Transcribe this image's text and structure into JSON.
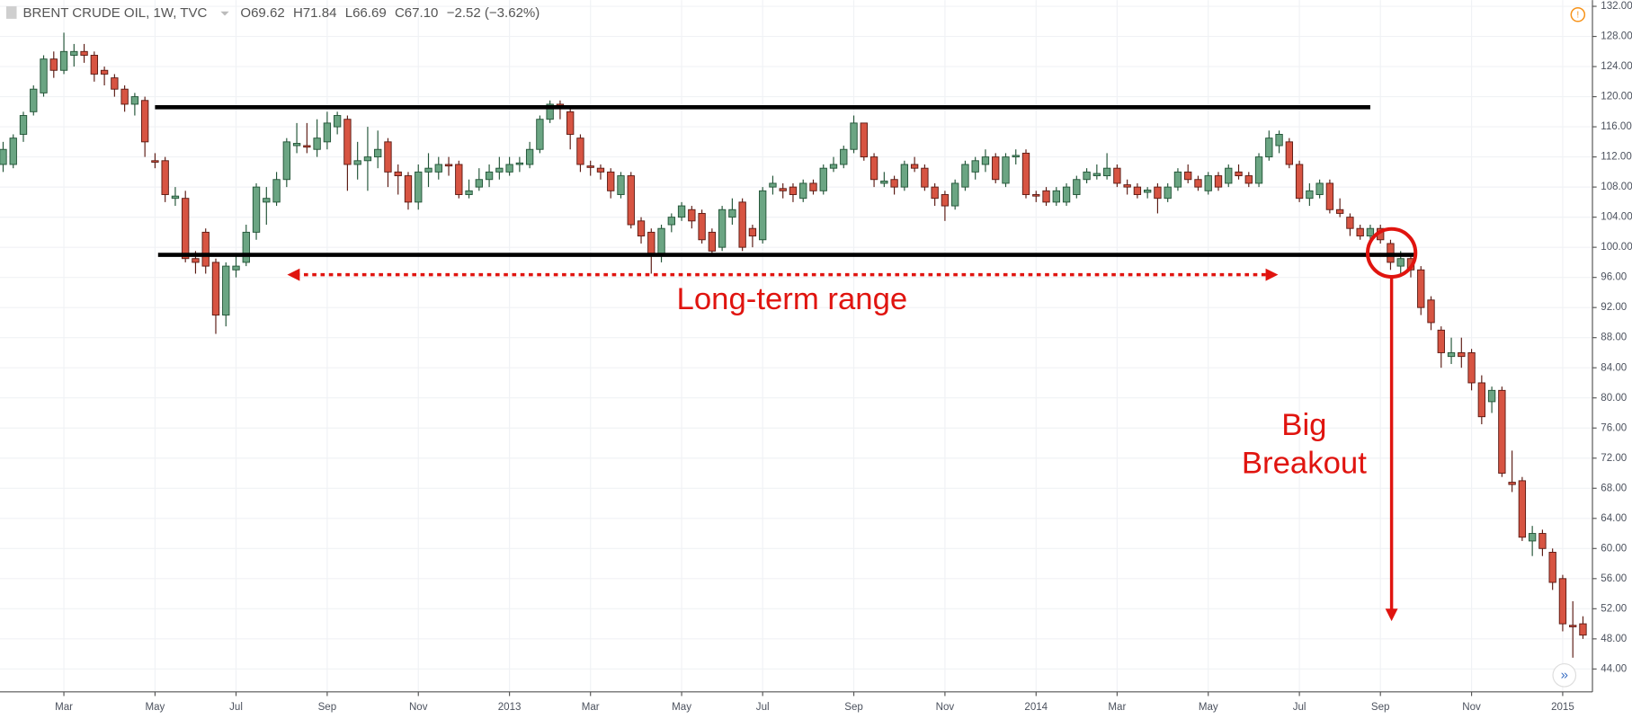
{
  "chart_data": {
    "type": "candlestick",
    "title": "BRENT CRUDE OIL, 1W, TVC",
    "legend_values": [
      "O69.62",
      "H71.84",
      "L66.69",
      "C67.10",
      "−2.52 (−3.62%)"
    ],
    "categories": [
      null,
      null,
      null,
      null,
      null,
      null,
      "Mar",
      null,
      null,
      null,
      null,
      null,
      null,
      null,
      null,
      "May",
      null,
      null,
      null,
      null,
      null,
      null,
      null,
      "Jul",
      null,
      null,
      null,
      null,
      null,
      null,
      null,
      null,
      "Sep",
      null,
      null,
      null,
      null,
      null,
      null,
      null,
      null,
      "Nov",
      null,
      null,
      null,
      null,
      null,
      null,
      null,
      null,
      "2013",
      null,
      null,
      null,
      null,
      null,
      null,
      null,
      "Mar",
      null,
      null,
      null,
      null,
      null,
      null,
      null,
      null,
      "May",
      null,
      null,
      null,
      null,
      null,
      null,
      null,
      "Jul",
      null,
      null,
      null,
      null,
      null,
      null,
      null,
      null,
      "Sep",
      null,
      null,
      null,
      null,
      null,
      null,
      null,
      null,
      "Nov",
      null,
      null,
      null,
      null,
      null,
      null,
      null,
      null,
      "2014",
      null,
      null,
      null,
      null,
      null,
      null,
      null,
      "Mar",
      null,
      null,
      null,
      null,
      null,
      null,
      null,
      null,
      "May",
      null,
      null,
      null,
      null,
      null,
      null,
      null,
      null,
      "Jul",
      null,
      null,
      null,
      null,
      null,
      null,
      null,
      "Sep",
      null,
      null,
      null,
      null,
      null,
      null,
      null,
      null,
      "Nov",
      null,
      null,
      null,
      null,
      null,
      null,
      null,
      null,
      "2015",
      null,
      null
    ],
    "open": [
      111,
      111,
      115,
      118,
      120.5,
      125,
      123.5,
      125.5,
      126,
      125.5,
      123.5,
      122.5,
      121,
      119,
      119.5,
      111.5,
      111.5,
      106.5,
      106.5,
      98.5,
      102,
      98,
      91,
      97,
      98,
      102,
      106,
      106,
      109,
      113.5,
      113.5,
      113,
      114,
      116,
      117,
      111,
      111.5,
      112,
      114,
      110,
      109.5,
      106,
      110,
      110,
      111,
      111,
      107,
      108,
      109,
      110,
      110,
      111,
      111,
      113,
      117,
      119,
      118,
      114.5,
      110.8,
      110.5,
      110,
      107,
      109.5,
      103.5,
      102,
      99,
      103,
      104,
      105,
      104.5,
      102,
      100,
      104,
      106,
      102.5,
      101,
      108,
      107.8,
      108,
      106.5,
      108.5,
      107.5,
      110.5,
      111,
      113,
      116.5,
      112,
      108.5,
      109,
      108,
      111,
      110.5,
      108,
      107,
      105.5,
      108,
      110,
      111,
      112,
      108.5,
      112,
      112.5,
      107,
      107.5,
      106,
      106,
      107,
      109,
      109.5,
      109.5,
      110.5,
      108.3,
      108,
      107.3,
      108,
      106.5,
      108,
      110,
      109,
      107.5,
      109.5,
      108.5,
      110,
      109.5,
      108.5,
      112,
      113.5,
      114,
      111,
      106.5,
      107,
      108.5,
      105,
      104,
      102.5,
      101.5,
      102.5,
      100.5,
      97.5,
      98.5,
      97,
      93,
      89,
      85.5,
      86,
      86,
      82,
      79.5,
      81,
      68.8,
      69,
      61,
      62,
      59.5,
      56,
      49.8,
      50
    ],
    "high": [
      114,
      115,
      118,
      121.5,
      125.5,
      126,
      128.5,
      127,
      127,
      126,
      124,
      123,
      121.5,
      120.5,
      120,
      112.5,
      112,
      108,
      107.5,
      99.5,
      102.5,
      98.5,
      98,
      99,
      103,
      108.5,
      108,
      110,
      114.5,
      116.5,
      116.5,
      117,
      118,
      118,
      117.5,
      114,
      116,
      115.5,
      114.5,
      111,
      110,
      111,
      112.5,
      112,
      112,
      111.5,
      109,
      110.5,
      111,
      112,
      112,
      112,
      114,
      117.5,
      119.5,
      119.5,
      118.5,
      115,
      111.5,
      111,
      110.5,
      110,
      110,
      104,
      102.5,
      103,
      104.5,
      106,
      105.5,
      105,
      102.5,
      105.5,
      106.5,
      106.5,
      103,
      108,
      109.5,
      108.5,
      108.5,
      109,
      109,
      111,
      112,
      113.5,
      117.5,
      116.5,
      112.5,
      110,
      109.5,
      111.5,
      112,
      111,
      108.5,
      107.5,
      109,
      111.5,
      112,
      113,
      112.5,
      112.5,
      113,
      113,
      107.5,
      108,
      108,
      108.5,
      109.5,
      110.5,
      111,
      112.5,
      111,
      109,
      108.5,
      108,
      108.5,
      108.5,
      110.5,
      111,
      109.5,
      110,
      110,
      111,
      111,
      110,
      112.5,
      115.5,
      115.5,
      114.5,
      111.5,
      108.5,
      109,
      109,
      106.5,
      104.5,
      103,
      103,
      103,
      101,
      99.5,
      99,
      97.5,
      93.5,
      89.5,
      88,
      88,
      86.5,
      83,
      81.5,
      81.5,
      73,
      69.5,
      63,
      62.5,
      60,
      56.5,
      53,
      51
    ],
    "low": [
      110,
      110.5,
      114,
      117.5,
      120,
      122.5,
      123,
      124,
      124.5,
      122,
      121.5,
      120,
      118,
      117.5,
      112,
      110.5,
      106,
      105.5,
      98,
      96.5,
      96.5,
      88.5,
      89.5,
      96,
      97.5,
      101,
      103,
      105.5,
      108,
      112.5,
      112.5,
      112,
      113,
      115,
      107.5,
      109,
      107.5,
      110.5,
      108,
      107,
      105,
      105,
      108,
      109,
      109.5,
      106.5,
      106.5,
      107.5,
      108,
      109,
      109.5,
      110,
      110.5,
      112.5,
      116.5,
      117,
      113,
      110,
      109.5,
      109,
      106.5,
      106.5,
      102.5,
      100.5,
      96.5,
      98,
      102,
      103.5,
      102.5,
      100.5,
      99,
      99.5,
      103,
      99.5,
      100,
      100.5,
      107,
      106.5,
      106,
      106,
      107,
      107,
      110,
      110.5,
      112.5,
      111.5,
      108,
      108,
      107,
      107.5,
      110,
      107.5,
      105.5,
      103.5,
      105,
      107.5,
      109,
      110,
      108.5,
      108,
      111,
      106.5,
      106,
      105.5,
      105.5,
      105.5,
      106.5,
      108.5,
      109,
      109,
      108,
      107,
      106.5,
      106.5,
      104.5,
      106,
      107.5,
      108.5,
      107.5,
      107,
      107.5,
      108,
      109,
      108,
      108,
      111.5,
      112.5,
      110.5,
      106,
      105.5,
      106.5,
      104.5,
      104,
      101.5,
      101,
      101,
      100.5,
      97,
      96.5,
      96,
      91,
      89,
      84,
      84.5,
      84,
      81,
      76.5,
      78,
      69.5,
      67.5,
      61,
      59,
      59,
      54.5,
      49,
      45.5,
      48
    ],
    "close": [
      113,
      114.5,
      117.5,
      121,
      125,
      123.5,
      126,
      126,
      125.5,
      123,
      123,
      121,
      119,
      120,
      114,
      111.3,
      107,
      106.8,
      98.5,
      98,
      97.5,
      91,
      97.5,
      97.5,
      102,
      108,
      106.5,
      109,
      114,
      113.8,
      113.3,
      114.5,
      116.5,
      117.5,
      111,
      111.5,
      112,
      113,
      110,
      109.5,
      106,
      110,
      110.5,
      111,
      110.8,
      107,
      107.5,
      109,
      110,
      110.5,
      111,
      111.2,
      113,
      117,
      119,
      118.5,
      115,
      111,
      110.6,
      110,
      107.5,
      109.5,
      103,
      101.5,
      99,
      102.5,
      104,
      105.5,
      103.5,
      101,
      99.5,
      105,
      105,
      100,
      101.5,
      107.5,
      108.5,
      107.5,
      107,
      108.5,
      107.5,
      110.5,
      111,
      113,
      116.5,
      112,
      109,
      108.8,
      108,
      111,
      110.5,
      108,
      106.5,
      105.5,
      108.5,
      111,
      111.5,
      112,
      109,
      112,
      112.2,
      107,
      106.8,
      106,
      107.5,
      108,
      109,
      110,
      109.8,
      110.5,
      108.5,
      108,
      107,
      107.6,
      106.5,
      108,
      110,
      109,
      108,
      109.5,
      108,
      110.5,
      109.5,
      108.5,
      112,
      114.5,
      115,
      111,
      106.5,
      107.5,
      108.5,
      105,
      104.5,
      102.5,
      101.5,
      102.5,
      101,
      98,
      98.5,
      97,
      92,
      90,
      86,
      86,
      85.5,
      82,
      77.5,
      81,
      70,
      68.5,
      61.5,
      62,
      60,
      55.5,
      50,
      49.6,
      48.5
    ],
    "up_color": "#6ba583",
    "down_color": "#d75442",
    "ylim": [
      40.96,
      132.83
    ],
    "yticks": [
      {
        "value": 44,
        "label": "44.00"
      },
      {
        "value": 48,
        "label": "48.00"
      },
      {
        "value": 52,
        "label": "52.00"
      },
      {
        "value": 56,
        "label": "56.00"
      },
      {
        "value": 60,
        "label": "60.00"
      },
      {
        "value": 64,
        "label": "64.00"
      },
      {
        "value": 68,
        "label": "68.00"
      },
      {
        "value": 72,
        "label": "72.00"
      },
      {
        "value": 76,
        "label": "76.00"
      },
      {
        "value": 80,
        "label": "80.00"
      },
      {
        "value": 84,
        "label": "84.00"
      },
      {
        "value": 88,
        "label": "88.00"
      },
      {
        "value": 92,
        "label": "92.00"
      },
      {
        "value": 96,
        "label": "96.00"
      },
      {
        "value": 100,
        "label": "100.00"
      },
      {
        "value": 104,
        "label": "104.00"
      },
      {
        "value": 108,
        "label": "108.00"
      },
      {
        "value": 112,
        "label": "112.00"
      },
      {
        "value": 116,
        "label": "116.00"
      },
      {
        "value": 120,
        "label": "120.00"
      },
      {
        "value": 124,
        "label": "124.00"
      },
      {
        "value": 128,
        "label": "128.00"
      },
      {
        "value": 132,
        "label": "132.00"
      }
    ],
    "grid": true,
    "hlines": [
      {
        "value": 118.6,
        "start": 15,
        "end": 135
      },
      {
        "value": 99,
        "start": 15.3,
        "end": 139.5
      }
    ],
    "annotations": [
      "Long-term range",
      "Big",
      "Breakout"
    ]
  }
}
